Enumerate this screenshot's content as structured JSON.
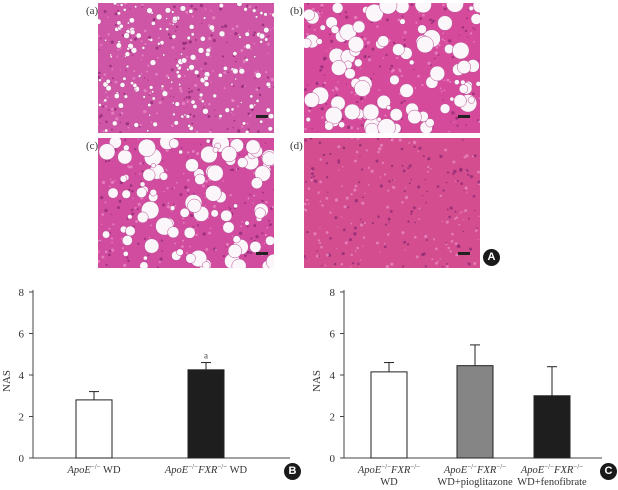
{
  "panel_A": {
    "badge": "A",
    "images": [
      {
        "label": "(a)",
        "tissue_color": "#cf55a6",
        "vacuoles": "small"
      },
      {
        "label": "(b)",
        "tissue_color": "#d64a9c",
        "vacuoles": "large"
      },
      {
        "label": "(c)",
        "tissue_color": "#d14b9f",
        "vacuoles": "large"
      },
      {
        "label": "(d)",
        "tissue_color": "#d34d8f",
        "vacuoles": "none"
      }
    ]
  },
  "chart_data": [
    {
      "type": "bar",
      "panel": "B",
      "ylabel": "NAS",
      "ylim": [
        0,
        8
      ],
      "yticks": [
        0,
        2,
        4,
        6,
        8
      ],
      "categories": [
        {
          "genotype": "ApoE",
          "sup": "−/−",
          "genotype2": "",
          "sup2": "",
          "suffix": " WD",
          "line2": ""
        },
        {
          "genotype": "ApoE",
          "sup": "−/−",
          "genotype2": "FXR",
          "sup2": "−/−",
          "suffix": " WD",
          "line2": ""
        }
      ],
      "values": [
        2.8,
        4.25
      ],
      "errors": [
        0.4,
        0.35
      ],
      "colors": [
        "#ffffff",
        "#1e1e1e"
      ],
      "annotations": [
        "",
        "a"
      ]
    },
    {
      "type": "bar",
      "panel": "C",
      "ylabel": "NAS",
      "ylim": [
        0,
        8
      ],
      "yticks": [
        0,
        2,
        4,
        6,
        8
      ],
      "categories": [
        {
          "genotype": "ApoE",
          "sup": "−/−",
          "genotype2": "FXR",
          "sup2": "−/−",
          "suffix": "",
          "line2": "WD"
        },
        {
          "genotype": "ApoE",
          "sup": "−/−",
          "genotype2": "FXR",
          "sup2": "−/−",
          "suffix": "",
          "line2": "WD+pioglitazone"
        },
        {
          "genotype": "ApoE",
          "sup": "−/−",
          "genotype2": "FXR",
          "sup2": "−/−",
          "suffix": "",
          "line2": "WD+fenofibrate"
        }
      ],
      "values": [
        4.15,
        4.45,
        3.0
      ],
      "errors": [
        0.45,
        1.0,
        1.4
      ],
      "colors": [
        "#ffffff",
        "#858585",
        "#1e1e1e"
      ],
      "annotations": [
        "",
        "",
        ""
      ]
    }
  ]
}
